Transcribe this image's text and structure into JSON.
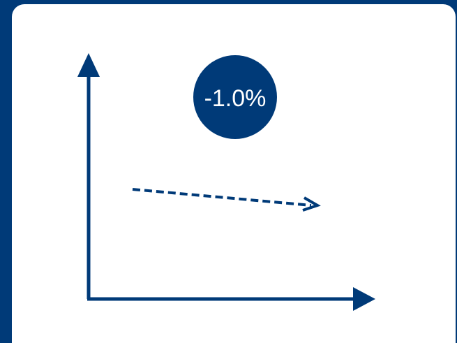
{
  "badge": {
    "label": "-1.0%"
  },
  "colors": {
    "frame": "#003a78",
    "card": "#ffffff",
    "accent": "#003a78"
  }
}
